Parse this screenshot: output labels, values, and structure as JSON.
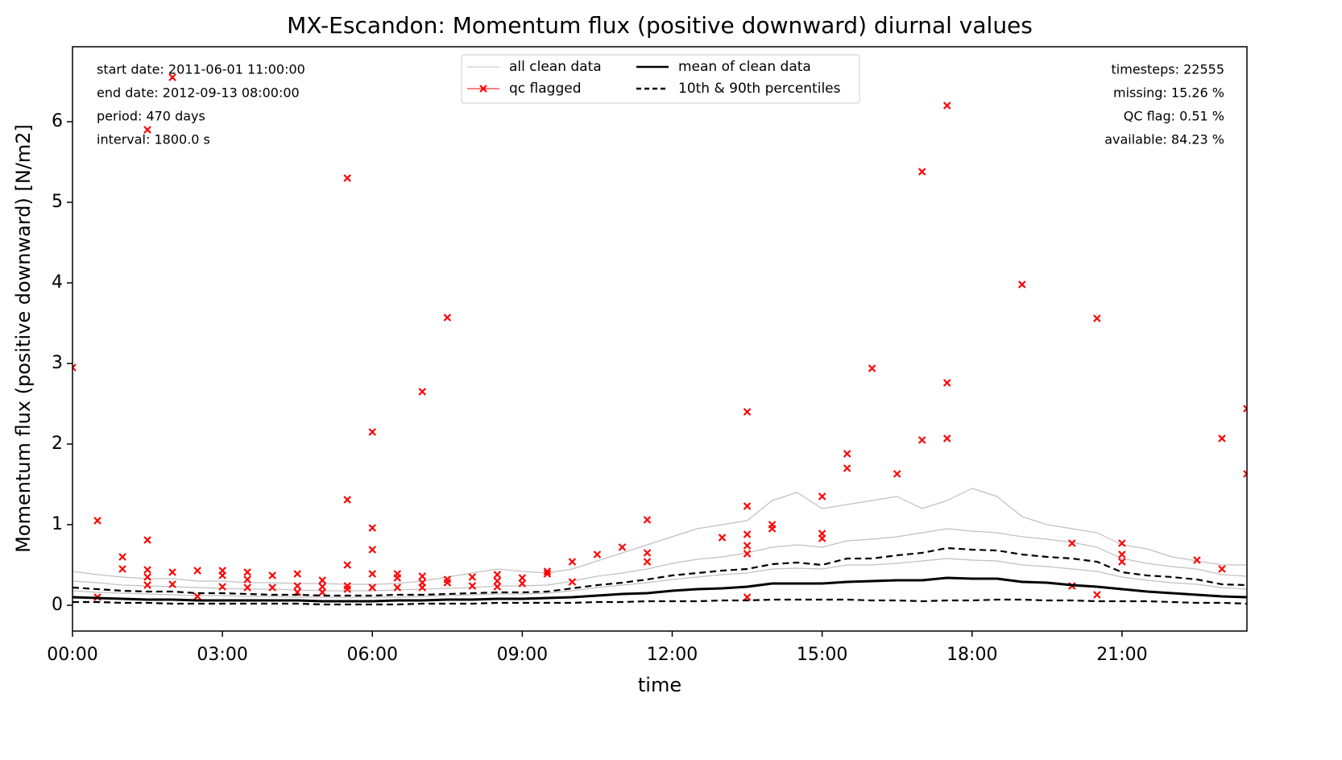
{
  "chart_data": {
    "type": "line",
    "title": "MX-Escandon: Momentum flux (positive downward) diurnal values",
    "xlabel": "time",
    "ylabel": "Momentum flux (positive downward) [N/m2]",
    "xlim": [
      0,
      23.5
    ],
    "ylim": [
      -0.32,
      6.93
    ],
    "xticks": [
      {
        "value": 0,
        "label": "00:00"
      },
      {
        "value": 3,
        "label": "03:00"
      },
      {
        "value": 6,
        "label": "06:00"
      },
      {
        "value": 9,
        "label": "09:00"
      },
      {
        "value": 12,
        "label": "12:00"
      },
      {
        "value": 15,
        "label": "15:00"
      },
      {
        "value": 18,
        "label": "18:00"
      },
      {
        "value": 21,
        "label": "21:00"
      }
    ],
    "yticks": [
      0,
      1,
      2,
      3,
      4,
      5,
      6
    ],
    "legend": "upper center",
    "info_left": [
      "start date: 2011-06-01 11:00:00",
      "end date: 2012-09-13 08:00:00",
      "period: 470 days",
      "interval: 1800.0 s"
    ],
    "info_right": [
      "timesteps: 22555",
      "missing: 15.26 %",
      "QC flag: 0.51 %",
      "available: 84.23 %"
    ],
    "x": [
      0,
      0.5,
      1,
      1.5,
      2,
      2.5,
      3,
      3.5,
      4,
      4.5,
      5,
      5.5,
      6,
      6.5,
      7,
      7.5,
      8,
      8.5,
      9,
      9.5,
      10,
      10.5,
      11,
      11.5,
      12,
      12.5,
      13,
      13.5,
      14,
      14.5,
      15,
      15.5,
      16,
      16.5,
      17,
      17.5,
      18,
      18.5,
      19,
      19.5,
      20,
      20.5,
      21,
      21.5,
      22,
      22.5,
      23,
      23.5
    ],
    "series": [
      {
        "name": "all clean data",
        "color": "#c0c0c0",
        "lines": [
          [
            0.42,
            0.38,
            0.35,
            0.33,
            0.33,
            0.3,
            0.3,
            0.28,
            0.28,
            0.27,
            0.27,
            0.26,
            0.26,
            0.27,
            0.3,
            0.35,
            0.4,
            0.45,
            0.42,
            0.4,
            0.45,
            0.55,
            0.65,
            0.75,
            0.85,
            0.95,
            1.0,
            1.05,
            1.3,
            1.4,
            1.2,
            1.25,
            1.3,
            1.35,
            1.2,
            1.3,
            1.45,
            1.35,
            1.1,
            1.0,
            0.95,
            0.9,
            0.75,
            0.7,
            0.6,
            0.55,
            0.5,
            0.5
          ],
          [
            0.3,
            0.28,
            0.25,
            0.24,
            0.23,
            0.22,
            0.21,
            0.2,
            0.2,
            0.19,
            0.18,
            0.18,
            0.18,
            0.19,
            0.2,
            0.21,
            0.22,
            0.24,
            0.24,
            0.25,
            0.3,
            0.36,
            0.4,
            0.45,
            0.52,
            0.57,
            0.6,
            0.65,
            0.72,
            0.75,
            0.72,
            0.8,
            0.82,
            0.85,
            0.9,
            0.95,
            0.92,
            0.9,
            0.85,
            0.82,
            0.78,
            0.72,
            0.58,
            0.52,
            0.48,
            0.45,
            0.38,
            0.36
          ],
          [
            0.18,
            0.16,
            0.15,
            0.14,
            0.13,
            0.12,
            0.12,
            0.11,
            0.11,
            0.1,
            0.1,
            0.1,
            0.1,
            0.1,
            0.11,
            0.12,
            0.13,
            0.14,
            0.14,
            0.15,
            0.18,
            0.22,
            0.25,
            0.28,
            0.32,
            0.35,
            0.38,
            0.4,
            0.45,
            0.46,
            0.45,
            0.5,
            0.5,
            0.52,
            0.55,
            0.58,
            0.56,
            0.55,
            0.5,
            0.48,
            0.45,
            0.42,
            0.35,
            0.31,
            0.28,
            0.26,
            0.22,
            0.2
          ]
        ]
      },
      {
        "name": "qc flagged",
        "color": "#ff0000",
        "x": [
          0,
          0.5,
          0.5,
          1,
          1,
          1.5,
          1.5,
          1.5,
          1.5,
          1.5,
          2,
          2,
          2,
          2.5,
          2.5,
          3,
          3,
          3,
          3.5,
          3.5,
          3.5,
          4,
          4,
          4.5,
          4.5,
          4.5,
          5,
          5,
          5,
          5.5,
          5.5,
          5.5,
          5.5,
          5.5,
          6,
          6,
          6,
          6,
          6,
          6.5,
          6.5,
          6.5,
          7,
          7,
          7,
          7,
          7.5,
          7.5,
          7.5,
          8,
          8,
          8.5,
          8.5,
          8.5,
          9,
          9,
          9.5,
          9.5,
          10,
          10,
          10.5,
          11,
          11.5,
          11.5,
          11.5,
          13,
          13.5,
          13.5,
          13.5,
          13.5,
          13.5,
          13.5,
          14,
          14,
          15,
          15,
          15,
          15.5,
          15.5,
          16,
          16.5,
          17,
          17,
          17.5,
          17.5,
          17.5,
          19,
          20,
          20,
          20.5,
          20.5,
          21,
          21,
          21,
          22.5,
          23,
          23,
          23.5,
          23.5
        ],
        "values": [
          2.95,
          1.05,
          0.1,
          0.6,
          0.45,
          5.9,
          0.81,
          0.44,
          0.35,
          0.25,
          6.55,
          0.41,
          0.26,
          0.43,
          0.11,
          0.43,
          0.37,
          0.23,
          0.41,
          0.32,
          0.22,
          0.37,
          0.22,
          0.39,
          0.24,
          0.16,
          0.31,
          0.23,
          0.16,
          5.3,
          1.31,
          0.5,
          0.24,
          0.2,
          2.15,
          0.96,
          0.69,
          0.39,
          0.22,
          0.39,
          0.34,
          0.22,
          2.65,
          0.36,
          0.28,
          0.22,
          3.57,
          0.32,
          0.28,
          0.35,
          0.24,
          0.38,
          0.3,
          0.23,
          0.34,
          0.27,
          0.42,
          0.39,
          0.54,
          0.29,
          0.63,
          0.72,
          1.06,
          0.65,
          0.54,
          0.84,
          2.4,
          1.23,
          0.88,
          0.74,
          0.64,
          0.1,
          1.0,
          0.95,
          1.35,
          0.89,
          0.83,
          1.88,
          1.7,
          2.94,
          1.63,
          5.38,
          2.05,
          6.2,
          2.76,
          2.07,
          3.98,
          0.77,
          0.24,
          3.56,
          0.13,
          0.77,
          0.63,
          0.54,
          0.56,
          2.07,
          0.45,
          2.44,
          1.63
        ]
      },
      {
        "name": "mean of clean data",
        "color": "#000000",
        "values": [
          0.1,
          0.09,
          0.08,
          0.07,
          0.07,
          0.06,
          0.06,
          0.06,
          0.06,
          0.06,
          0.05,
          0.05,
          0.05,
          0.06,
          0.06,
          0.07,
          0.07,
          0.08,
          0.08,
          0.09,
          0.1,
          0.12,
          0.14,
          0.15,
          0.18,
          0.2,
          0.21,
          0.23,
          0.27,
          0.27,
          0.27,
          0.29,
          0.3,
          0.31,
          0.31,
          0.34,
          0.33,
          0.33,
          0.29,
          0.28,
          0.25,
          0.23,
          0.2,
          0.17,
          0.15,
          0.13,
          0.11,
          0.1
        ]
      },
      {
        "name": "10th & 90th percentiles",
        "color": "#000000",
        "dashed": true,
        "lines": [
          [
            0.04,
            0.04,
            0.03,
            0.03,
            0.02,
            0.02,
            0.02,
            0.02,
            0.02,
            0.02,
            0.01,
            0.01,
            0.01,
            0.01,
            0.02,
            0.02,
            0.02,
            0.03,
            0.03,
            0.03,
            0.03,
            0.04,
            0.04,
            0.05,
            0.05,
            0.05,
            0.06,
            0.06,
            0.07,
            0.07,
            0.07,
            0.07,
            0.06,
            0.06,
            0.05,
            0.06,
            0.06,
            0.07,
            0.07,
            0.06,
            0.06,
            0.05,
            0.05,
            0.05,
            0.04,
            0.03,
            0.03,
            0.02
          ],
          [
            0.22,
            0.2,
            0.18,
            0.17,
            0.17,
            0.15,
            0.15,
            0.14,
            0.13,
            0.13,
            0.12,
            0.12,
            0.12,
            0.13,
            0.13,
            0.14,
            0.15,
            0.16,
            0.16,
            0.17,
            0.21,
            0.25,
            0.28,
            0.32,
            0.37,
            0.4,
            0.43,
            0.45,
            0.51,
            0.53,
            0.5,
            0.58,
            0.58,
            0.62,
            0.65,
            0.71,
            0.69,
            0.68,
            0.63,
            0.6,
            0.58,
            0.54,
            0.41,
            0.37,
            0.35,
            0.32,
            0.26,
            0.25
          ]
        ]
      }
    ]
  }
}
